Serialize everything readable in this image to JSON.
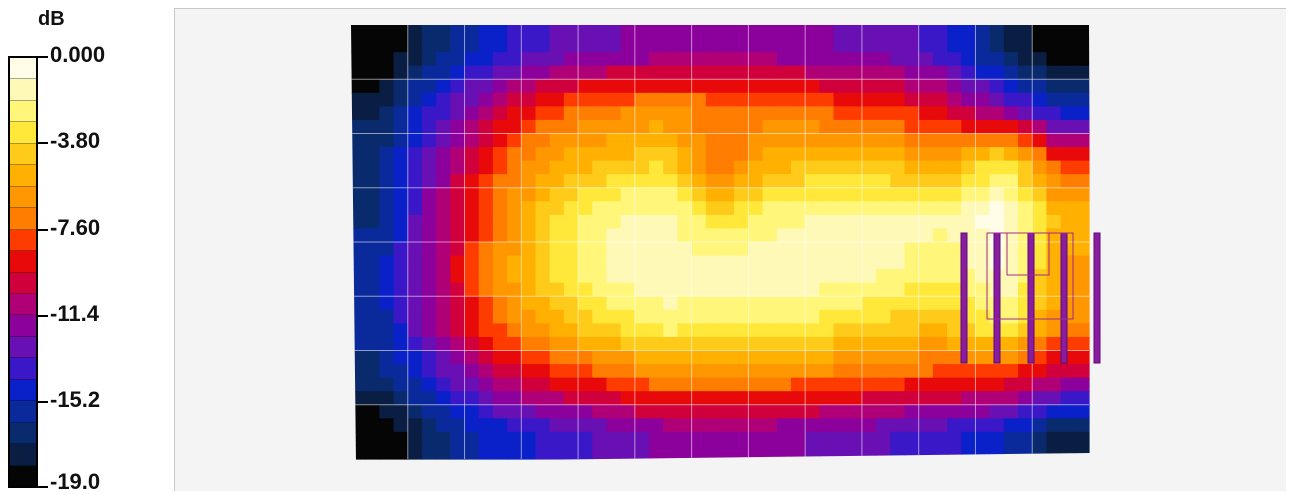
{
  "chart_data": {
    "type": "heatmap",
    "colorbar": {
      "unit": "dB",
      "labels": [
        "0.000",
        "-3.80",
        "-7.60",
        "-11.4",
        "-15.2",
        "-19.0"
      ],
      "range": [
        -19.0,
        0.0
      ],
      "steps": 20,
      "colors": [
        "#fffde8",
        "#fff9b8",
        "#fff67a",
        "#ffe83a",
        "#ffcb1a",
        "#ffb000",
        "#ff9700",
        "#ff7d00",
        "#ff3c00",
        "#e80a0a",
        "#d0003c",
        "#b00078",
        "#8c009c",
        "#6810b4",
        "#3a18c8",
        "#0a20c8",
        "#0a2a9c",
        "#0a2a6e",
        "#0a1e44",
        "#050505"
      ]
    },
    "grid": true,
    "x_range": [
      0,
      12
    ],
    "y_range": [
      0,
      7
    ],
    "note_x_y": "grid indices across the mapped field (columns 0-12, rows 0-7)",
    "values": [
      [
        -19.0,
        -16.5,
        -14.5,
        -13.2,
        -12.5,
        -12.0,
        -11.8,
        -12.0,
        -12.3,
        -12.8,
        -14.0,
        -17.0,
        -19.0
      ],
      [
        -17.5,
        -14.0,
        -10.8,
        -8.0,
        -7.2,
        -6.5,
        -7.2,
        -7.0,
        -8.0,
        -8.4,
        -10.0,
        -12.6,
        -15.5
      ],
      [
        -16.2,
        -12.2,
        -8.2,
        -5.6,
        -4.8,
        -4.0,
        -7.6,
        -5.2,
        -4.6,
        -5.0,
        -5.8,
        -3.0,
        -8.4
      ],
      [
        -16.5,
        -11.4,
        -7.4,
        -4.0,
        -2.0,
        -1.6,
        -3.8,
        -2.2,
        -1.8,
        -1.8,
        -1.6,
        -0.4,
        -5.2
      ],
      [
        -15.5,
        -11.0,
        -6.6,
        -3.8,
        -1.6,
        -1.2,
        -1.4,
        -1.3,
        -1.2,
        -1.8,
        -2.5,
        -0.6,
        -5.8
      ],
      [
        -15.8,
        -11.4,
        -7.6,
        -5.2,
        -3.6,
        -2.2,
        -2.6,
        -2.4,
        -3.2,
        -4.2,
        -4.4,
        -2.4,
        -6.4
      ],
      [
        -16.6,
        -14.0,
        -10.8,
        -8.8,
        -7.8,
        -6.8,
        -6.6,
        -6.8,
        -7.2,
        -7.8,
        -8.2,
        -8.4,
        -10.8
      ],
      [
        -19.0,
        -16.6,
        -15.0,
        -14.0,
        -13.0,
        -12.0,
        -11.8,
        -12.0,
        -12.6,
        -13.2,
        -14.0,
        -15.0,
        -17.6
      ]
    ]
  }
}
